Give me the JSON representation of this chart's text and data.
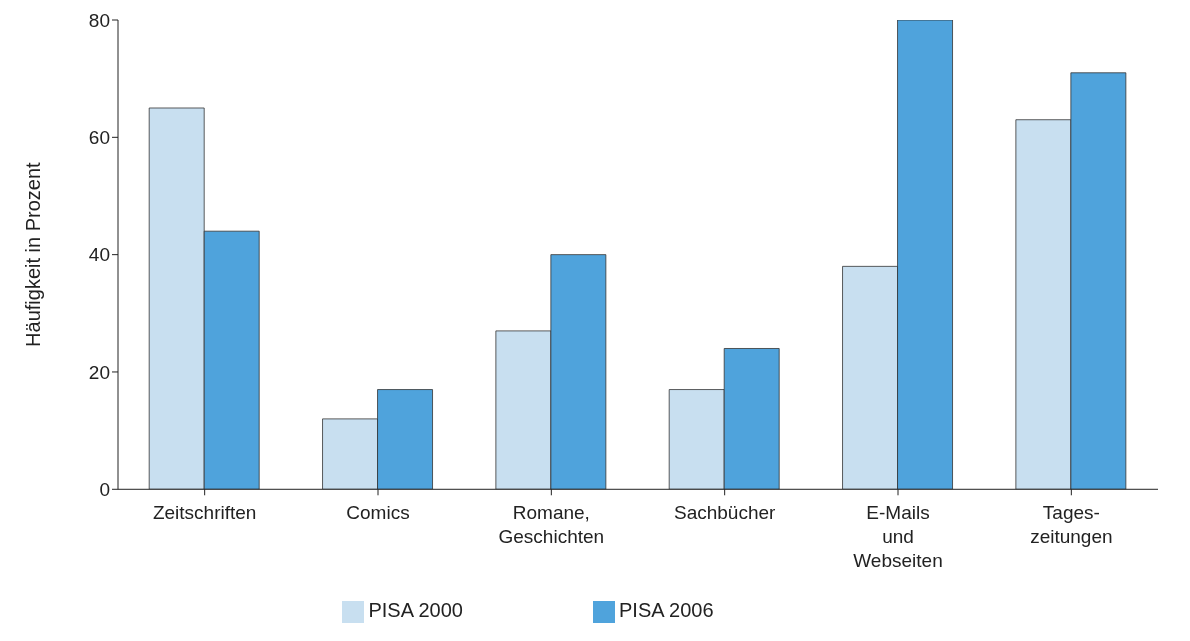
{
  "chart_data": {
    "type": "bar",
    "ylabel": "Häufigkeit in Prozent",
    "categories": [
      "Zeitschriften",
      "Comics",
      "Romane,\nGeschichten",
      "Sachbücher",
      "E-Mails\nund\nWebseiten",
      "Tages-\nzeitungen"
    ],
    "series": [
      {
        "name": "PISA 2000",
        "color": "#c8dff0",
        "values": [
          65,
          12,
          27,
          17,
          38,
          63
        ]
      },
      {
        "name": "PISA 2006",
        "color": "#4fa3dc",
        "values": [
          44,
          17,
          40,
          24,
          80,
          71
        ]
      }
    ],
    "ylim": [
      0,
      80
    ],
    "yticks": [
      0,
      20,
      40,
      60,
      80
    ],
    "grid": false,
    "legend": "bottom"
  }
}
